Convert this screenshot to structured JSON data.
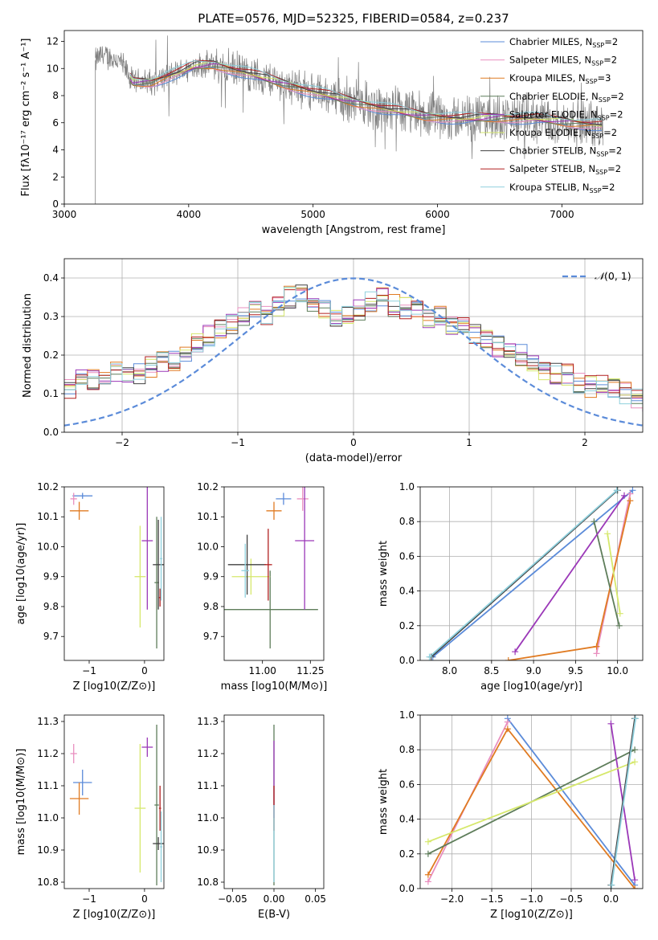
{
  "figure": {
    "title": "PLATE=0576, MJD=52325, FIBERID=0584, z=0.237"
  },
  "series": [
    {
      "name": "Chabrier MILES, N$_{SSP}$=2",
      "label": "Chabrier MILES, N",
      "n": "2",
      "color": "#5b8bd9"
    },
    {
      "name": "Salpeter MILES, N$_{SSP}$=2",
      "label": "Salpeter MILES, N",
      "n": "2",
      "color": "#e98fbf"
    },
    {
      "name": "Kroupa MILES, N$_{SSP}$=3",
      "label": "Kroupa MILES, N",
      "n": "3",
      "color": "#e07b22"
    },
    {
      "name": "Chabrier ELODIE, N$_{SSP}$=2",
      "label": "Chabrier ELODIE, N",
      "n": "2",
      "color": "#5e7d5a"
    },
    {
      "name": "Salpeter ELODIE, N$_{SSP}$=2",
      "label": "Salpeter ELODIE, N",
      "n": "2",
      "color": "#9b38b8"
    },
    {
      "name": "Kroupa ELODIE, N$_{SSP}$=2",
      "label": "Kroupa ELODIE, N",
      "n": "2",
      "color": "#d6e86c"
    },
    {
      "name": "Chabrier STELIB, N$_{SSP}$=2",
      "label": "Chabrier STELIB, N",
      "n": "2",
      "color": "#404040"
    },
    {
      "name": "Salpeter STELIB, N$_{SSP}$=2",
      "label": "Salpeter STELIB, N",
      "n": "2",
      "color": "#b22020"
    },
    {
      "name": "Kroupa STELIB, N$_{SSP}$=2",
      "label": "Kroupa STELIB, N",
      "n": "2",
      "color": "#8fd0dd"
    }
  ],
  "chart_data": [
    {
      "type": "line",
      "id": "spectrum",
      "title": "PLATE=0576, MJD=52325, FIBERID=0584, z=0.237",
      "xlabel": "wavelength [Angstrom, rest frame]",
      "ylabel": "Flux [fλ10⁻¹⁷ erg cm⁻² s⁻¹ A⁻¹]",
      "xlim": [
        3000,
        7650
      ],
      "ylim": [
        0,
        12.8
      ],
      "xticks": [
        3000,
        4000,
        5000,
        6000,
        7000
      ],
      "yticks": [
        0,
        2,
        4,
        6,
        8,
        10,
        12
      ],
      "data_range": [
        3250,
        7330
      ],
      "data_color": "#808080",
      "continuum_knots": {
        "x": [
          3260,
          3300,
          3450,
          3550,
          3700,
          3850,
          3950,
          4050,
          4200,
          4500,
          4800,
          5000,
          5300,
          5600,
          5900,
          6200,
          6500,
          6800,
          7100,
          7330
        ],
        "y": [
          10.6,
          11.0,
          10.5,
          9.0,
          9.0,
          9.5,
          9.8,
          10.2,
          10.3,
          9.6,
          8.8,
          8.3,
          7.6,
          7.0,
          6.5,
          6.3,
          6.4,
          6.3,
          6.0,
          5.8
        ]
      },
      "model_range": [
        3530,
        7330
      ],
      "legend_placement": "upper right"
    },
    {
      "type": "step",
      "id": "residual-histogram",
      "xlabel": "(data-model)/error",
      "ylabel": "Normed distribution",
      "xlim": [
        -2.5,
        2.5
      ],
      "ylim": [
        0,
        0.45
      ],
      "xticks": [
        -2,
        -1,
        0,
        1,
        2
      ],
      "yticks": [
        0.0,
        0.1,
        0.2,
        0.3,
        0.4
      ],
      "grid": true,
      "bin_edges_start": -2.5,
      "bin_width": 0.1,
      "base_values": [
        0.11,
        0.14,
        0.14,
        0.15,
        0.16,
        0.16,
        0.15,
        0.17,
        0.18,
        0.18,
        0.21,
        0.23,
        0.25,
        0.27,
        0.28,
        0.3,
        0.31,
        0.3,
        0.33,
        0.35,
        0.36,
        0.33,
        0.32,
        0.3,
        0.31,
        0.32,
        0.34,
        0.35,
        0.33,
        0.32,
        0.31,
        0.3,
        0.3,
        0.28,
        0.27,
        0.26,
        0.24,
        0.22,
        0.21,
        0.2,
        0.17,
        0.16,
        0.15,
        0.15,
        0.13,
        0.12,
        0.12,
        0.11,
        0.1,
        0.09,
        0.08,
        0.07,
        0.06,
        0.055,
        0.05,
        0.045,
        0.04,
        0.04,
        0.035,
        0.03
      ],
      "reference_curve": {
        "name": "N(0,1)",
        "label_main": "𝒩",
        "label_args": "(0, 1)",
        "color": "#5b8bd9",
        "style": "dashed"
      },
      "legend_placement": "upper right"
    },
    {
      "type": "errorbar",
      "id": "age-vs-Z",
      "xlabel": "Z [log10(Z/Z⊙)]",
      "ylabel": "age [log10(age/yr)]",
      "xlim": [
        -1.45,
        0.35
      ],
      "ylim": [
        9.62,
        10.2
      ],
      "xticks": [
        -1,
        0
      ],
      "yticks": [
        9.7,
        9.8,
        9.9,
        10.0,
        10.1,
        10.2
      ],
      "points": [
        {
          "series": 0,
          "x": -1.12,
          "y": 10.17,
          "xerr": 0.18,
          "yerr": 0.01
        },
        {
          "series": 1,
          "x": -1.28,
          "y": 10.16,
          "xerr": 0.06,
          "yerr": 0.02
        },
        {
          "series": 2,
          "x": -1.18,
          "y": 10.12,
          "xerr": 0.17,
          "yerr": 0.03
        },
        {
          "series": 3,
          "x": 0.22,
          "y": 9.88,
          "xerr": 0.04,
          "yerr": 0.22
        },
        {
          "series": 4,
          "x": 0.05,
          "y": 10.02,
          "xerr": 0.1,
          "yerr": 0.23
        },
        {
          "series": 5,
          "x": -0.08,
          "y": 9.9,
          "xerr": 0.1,
          "yerr": 0.17
        },
        {
          "series": 6,
          "x": 0.25,
          "y": 9.94,
          "xerr": 0.1,
          "yerr": 0.15
        },
        {
          "series": 7,
          "x": 0.28,
          "y": 9.83,
          "xerr": 0.02,
          "yerr": 0.03
        },
        {
          "series": 8,
          "x": 0.3,
          "y": 9.96,
          "xerr": 0.02,
          "yerr": 0.14
        }
      ]
    },
    {
      "type": "errorbar",
      "id": "age-vs-mass",
      "xlabel": "mass [log10(M/M⊙)]",
      "ylabel": "",
      "xlim": [
        10.8,
        11.32
      ],
      "ylim": [
        9.62,
        10.2
      ],
      "xticks": [
        11.0,
        11.25
      ],
      "yticks": [
        9.7,
        9.8,
        9.9,
        10.0,
        10.1,
        10.2
      ],
      "points": [
        {
          "series": 0,
          "x": 11.11,
          "y": 10.16,
          "xerr": 0.04,
          "yerr": 0.02
        },
        {
          "series": 1,
          "x": 11.21,
          "y": 10.16,
          "xerr": 0.03,
          "yerr": 0.04
        },
        {
          "series": 2,
          "x": 11.06,
          "y": 10.12,
          "xerr": 0.04,
          "yerr": 0.03
        },
        {
          "series": 3,
          "x": 11.04,
          "y": 9.79,
          "xerr": 0.25,
          "yerr": 0.13
        },
        {
          "series": 4,
          "x": 11.22,
          "y": 10.02,
          "xerr": 0.05,
          "yerr": 0.23
        },
        {
          "series": 5,
          "x": 10.94,
          "y": 9.9,
          "xerr": 0.1,
          "yerr": 0.06
        },
        {
          "series": 6,
          "x": 10.92,
          "y": 9.94,
          "xerr": 0.1,
          "yerr": 0.1
        },
        {
          "series": 7,
          "x": 11.03,
          "y": 9.94,
          "xerr": 0.02,
          "yerr": 0.12
        },
        {
          "series": 8,
          "x": 10.91,
          "y": 9.92,
          "xerr": 0.02,
          "yerr": 0.09
        }
      ]
    },
    {
      "type": "line",
      "id": "weight-vs-age",
      "xlabel": "age  [log10(age/yr)]",
      "ylabel": "mass weight",
      "xlim": [
        7.65,
        10.3
      ],
      "ylim": [
        0,
        1
      ],
      "xticks": [
        8.0,
        8.5,
        9.0,
        9.5,
        10.0
      ],
      "yticks": [
        0.0,
        0.2,
        0.4,
        0.6,
        0.8,
        1.0
      ],
      "grid": true,
      "lines": [
        {
          "series": 0,
          "x": [
            7.8,
            10.18
          ],
          "y": [
            0.02,
            0.98
          ]
        },
        {
          "series": 1,
          "x": [
            9.75,
            10.15
          ],
          "y": [
            0.04,
            0.96
          ]
        },
        {
          "series": 2,
          "x": [
            8.7,
            9.75,
            10.15
          ],
          "y": [
            0.0,
            0.08,
            0.92
          ]
        },
        {
          "series": 3,
          "x": [
            9.72,
            10.02
          ],
          "y": [
            0.8,
            0.2
          ]
        },
        {
          "series": 4,
          "x": [
            8.78,
            10.08
          ],
          "y": [
            0.05,
            0.95
          ]
        },
        {
          "series": 5,
          "x": [
            9.88,
            10.03
          ],
          "y": [
            0.73,
            0.27
          ]
        },
        {
          "series": 6,
          "x": [
            7.78,
            10.0
          ],
          "y": [
            0.02,
            0.98
          ]
        },
        {
          "series": 8,
          "x": [
            7.76,
            9.99
          ],
          "y": [
            0.02,
            0.98
          ]
        }
      ]
    },
    {
      "type": "errorbar",
      "id": "mass-vs-Z",
      "xlabel": "Z [log10(Z/Z⊙)]",
      "ylabel": "mass [log10(M/M⊙)]",
      "xlim": [
        -1.45,
        0.35
      ],
      "ylim": [
        10.78,
        11.32
      ],
      "xticks": [
        -1,
        0
      ],
      "yticks": [
        10.8,
        10.9,
        11.0,
        11.1,
        11.2,
        11.3
      ],
      "points": [
        {
          "series": 0,
          "x": -1.12,
          "y": 11.11,
          "xerr": 0.17,
          "yerr": 0.04
        },
        {
          "series": 1,
          "x": -1.28,
          "y": 11.2,
          "xerr": 0.06,
          "yerr": 0.03
        },
        {
          "series": 2,
          "x": -1.18,
          "y": 11.06,
          "xerr": 0.17,
          "yerr": 0.05
        },
        {
          "series": 3,
          "x": 0.22,
          "y": 11.04,
          "xerr": 0.04,
          "yerr": 0.25
        },
        {
          "series": 4,
          "x": 0.05,
          "y": 11.22,
          "xerr": 0.1,
          "yerr": 0.03
        },
        {
          "series": 5,
          "x": -0.08,
          "y": 11.03,
          "xerr": 0.1,
          "yerr": 0.2
        },
        {
          "series": 6,
          "x": 0.25,
          "y": 10.92,
          "xerr": 0.1,
          "yerr": 0.02
        },
        {
          "series": 7,
          "x": 0.28,
          "y": 11.03,
          "xerr": 0.02,
          "yerr": 0.07
        },
        {
          "series": 8,
          "x": 0.3,
          "y": 10.91,
          "xerr": 0.02,
          "yerr": 0.11
        }
      ]
    },
    {
      "type": "errorbar",
      "id": "mass-vs-ebv",
      "xlabel": "E(B-V)",
      "ylabel": "",
      "xlim": [
        -0.06,
        0.06
      ],
      "ylim": [
        10.78,
        11.32
      ],
      "xticks": [
        -0.05,
        0.0,
        0.05
      ],
      "yticks": [
        10.8,
        10.9,
        11.0,
        11.1,
        11.2,
        11.3
      ],
      "points": [
        {
          "series": 3,
          "x": 0.0,
          "y": 11.04,
          "xerr": 0,
          "yerr": 0.25
        },
        {
          "series": 4,
          "x": 0.0,
          "y": 11.12,
          "xerr": 0,
          "yerr": 0.12
        },
        {
          "series": 7,
          "x": 0.0,
          "y": 11.03,
          "xerr": 0,
          "yerr": 0.07
        },
        {
          "series": 8,
          "x": 0.0,
          "y": 10.92,
          "xerr": 0,
          "yerr": 0.12
        }
      ]
    },
    {
      "type": "line",
      "id": "weight-vs-Z",
      "xlabel": "Z [log10(Z/Z⊙)]",
      "ylabel": "mass weight",
      "xlim": [
        -2.4,
        0.4
      ],
      "ylim": [
        0,
        1
      ],
      "xticks": [
        -2.0,
        -1.5,
        -1.0,
        -0.5,
        0.0
      ],
      "yticks": [
        0.0,
        0.2,
        0.4,
        0.6,
        0.8,
        1.0
      ],
      "grid": true,
      "lines": [
        {
          "series": 0,
          "x": [
            -1.3,
            0.3
          ],
          "y": [
            0.98,
            0.02
          ]
        },
        {
          "series": 1,
          "x": [
            -2.3,
            -1.3
          ],
          "y": [
            0.04,
            0.96
          ]
        },
        {
          "series": 2,
          "x": [
            -2.3,
            -1.3,
            0.3
          ],
          "y": [
            0.08,
            0.92,
            0.0
          ]
        },
        {
          "series": 3,
          "x": [
            -2.3,
            0.3
          ],
          "y": [
            0.2,
            0.8
          ]
        },
        {
          "series": 4,
          "x": [
            0.0,
            0.3
          ],
          "y": [
            0.95,
            0.05
          ]
        },
        {
          "series": 5,
          "x": [
            -2.3,
            0.3
          ],
          "y": [
            0.27,
            0.73
          ]
        },
        {
          "series": 6,
          "x": [
            0.0,
            0.3
          ],
          "y": [
            0.02,
            0.98
          ]
        },
        {
          "series": 8,
          "x": [
            0.01,
            0.31
          ],
          "y": [
            0.02,
            0.98
          ]
        }
      ]
    }
  ]
}
